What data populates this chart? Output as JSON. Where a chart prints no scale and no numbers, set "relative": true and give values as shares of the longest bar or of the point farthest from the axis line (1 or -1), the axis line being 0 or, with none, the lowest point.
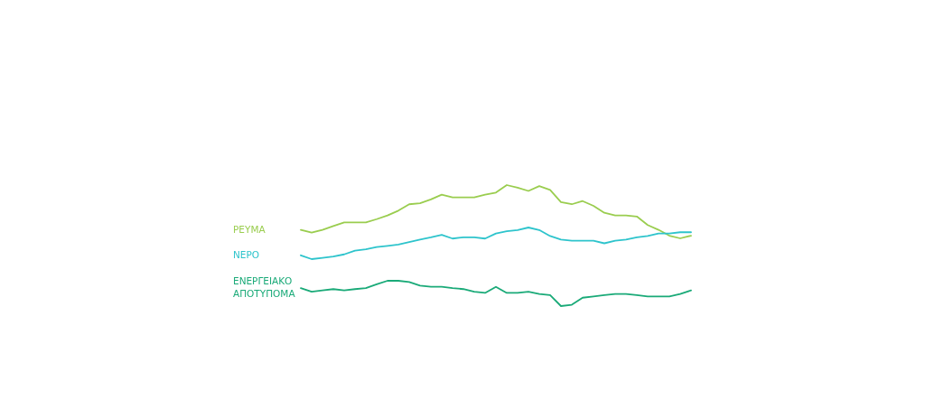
{
  "chart_data": [
    {
      "type": "line",
      "relative": true,
      "legend": false,
      "marker": "none",
      "line_style": "solid",
      "categories": [
        null,
        null,
        null,
        null,
        null,
        null,
        null,
        null,
        null,
        null,
        null,
        null,
        null,
        null,
        null,
        null,
        null,
        null,
        null,
        null,
        null,
        null,
        null,
        null,
        null,
        null,
        null,
        null,
        null,
        null,
        null,
        null,
        null,
        null,
        null,
        null,
        null
      ],
      "series": [
        {
          "name": "ΡΕΥΜΑ",
          "color": "#9acd4f",
          "values": [
            0.16,
            0.11,
            0.16,
            0.23,
            0.3,
            0.3,
            0.3,
            0.36,
            0.43,
            0.52,
            0.64,
            0.66,
            0.73,
            0.82,
            0.77,
            0.77,
            0.77,
            0.82,
            0.86,
            1,
            0.95,
            0.89,
            0.98,
            0.91,
            0.68,
            0.64,
            0.7,
            0.61,
            0.48,
            0.43,
            0.43,
            0.41,
            0.25,
            0.16,
            0.05,
            0,
            0.05
          ]
        }
      ]
    },
    {
      "type": "line",
      "relative": true,
      "legend": false,
      "marker": "none",
      "line_style": "solid",
      "categories": [
        null,
        null,
        null,
        null,
        null,
        null,
        null,
        null,
        null,
        null,
        null,
        null,
        null,
        null,
        null,
        null,
        null,
        null,
        null,
        null,
        null,
        null,
        null,
        null,
        null,
        null,
        null,
        null,
        null,
        null,
        null,
        null,
        null,
        null,
        null,
        null,
        null
      ],
      "series": [
        {
          "name": "ΝΕΡΟ",
          "color": "#2ec4cc",
          "values": [
            0.12,
            0,
            0.04,
            0.08,
            0.15,
            0.27,
            0.31,
            0.38,
            0.42,
            0.46,
            0.54,
            0.62,
            0.69,
            0.77,
            0.65,
            0.69,
            0.69,
            0.65,
            0.81,
            0.88,
            0.92,
            1,
            0.92,
            0.73,
            0.62,
            0.58,
            0.58,
            0.58,
            0.5,
            0.58,
            0.62,
            0.69,
            0.73,
            0.81,
            0.81,
            0.85,
            0.85
          ]
        }
      ]
    },
    {
      "type": "line",
      "relative": true,
      "legend": false,
      "marker": "none",
      "line_style": "solid",
      "categories": [
        null,
        null,
        null,
        null,
        null,
        null,
        null,
        null,
        null,
        null,
        null,
        null,
        null,
        null,
        null,
        null,
        null,
        null,
        null,
        null,
        null,
        null,
        null,
        null,
        null,
        null,
        null,
        null,
        null,
        null,
        null,
        null,
        null,
        null,
        null,
        null,
        null
      ],
      "series": [
        {
          "name": "ΕΝΕΡΓΕΙΑΚΟ ΑΠΟΤΥΠΟΜΑ",
          "color": "#1aaa78",
          "values": [
            0.71,
            0.57,
            0.62,
            0.67,
            0.62,
            0.67,
            0.71,
            0.86,
            1,
            1,
            0.95,
            0.81,
            0.76,
            0.76,
            0.71,
            0.67,
            0.57,
            0.52,
            0.76,
            0.52,
            0.52,
            0.57,
            0.48,
            0.43,
            0,
            0.05,
            0.33,
            0.38,
            0.43,
            0.48,
            0.48,
            0.43,
            0.38,
            0.38,
            0.38,
            0.48,
            0.62
          ]
        }
      ]
    }
  ]
}
